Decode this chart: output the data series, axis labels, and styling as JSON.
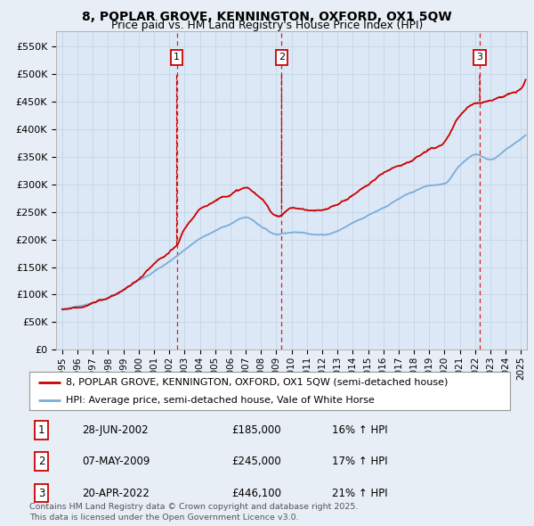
{
  "title": "8, POPLAR GROVE, KENNINGTON, OXFORD, OX1 5QW",
  "subtitle": "Price paid vs. HM Land Registry's House Price Index (HPI)",
  "legend_property": "8, POPLAR GROVE, KENNINGTON, OXFORD, OX1 5QW (semi-detached house)",
  "legend_hpi": "HPI: Average price, semi-detached house, Vale of White Horse",
  "yticks": [
    0,
    50000,
    100000,
    150000,
    200000,
    250000,
    300000,
    350000,
    400000,
    450000,
    500000,
    550000
  ],
  "ytick_labels": [
    "£0",
    "£50K",
    "£100K",
    "£150K",
    "£200K",
    "£250K",
    "£300K",
    "£350K",
    "£400K",
    "£450K",
    "£500K",
    "£550K"
  ],
  "xlim_start": 1994.6,
  "xlim_end": 2025.4,
  "ylim_min": 0,
  "ylim_max": 577000,
  "property_color": "#cc0000",
  "hpi_color": "#7aaddb",
  "background_color": "#e8eef5",
  "plot_bg_color": "#dce8f5",
  "sale_markers": [
    {
      "year": 2002.49,
      "price": 185000,
      "label": "1"
    },
    {
      "year": 2009.35,
      "price": 245000,
      "label": "2"
    },
    {
      "year": 2022.3,
      "price": 446100,
      "label": "3"
    }
  ],
  "marker_top_y": 530000,
  "footer_text": "Contains HM Land Registry data © Crown copyright and database right 2025.\nThis data is licensed under the Open Government Licence v3.0.",
  "table_rows": [
    {
      "num": "1",
      "date": "28-JUN-2002",
      "price": "£185,000",
      "hpi": "16% ↑ HPI"
    },
    {
      "num": "2",
      "date": "07-MAY-2009",
      "price": "£245,000",
      "hpi": "17% ↑ HPI"
    },
    {
      "num": "3",
      "date": "20-APR-2022",
      "price": "£446,100",
      "hpi": "21% ↑ HPI"
    }
  ]
}
